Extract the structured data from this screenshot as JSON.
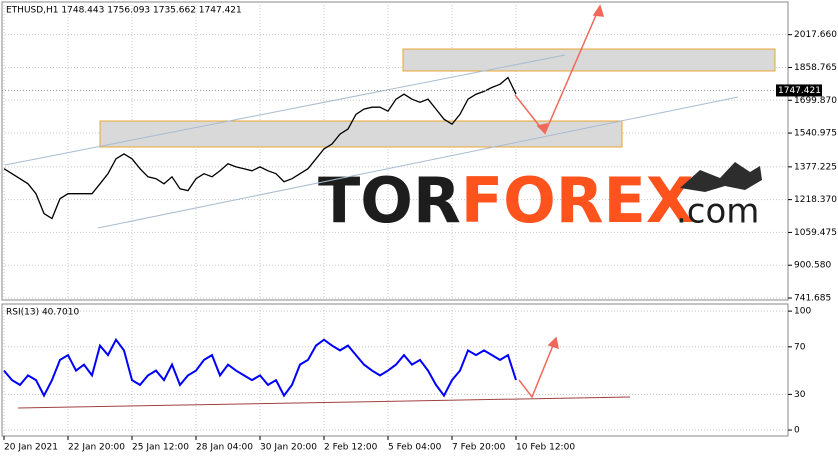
{
  "header": {
    "symbol_info": "ETHUSD,H1  1748.443 1756.093 1735.662 1747.421"
  },
  "watermark": {
    "brand_dark": "TOR",
    "brand_accent": "FOREX",
    "domain": ".com"
  },
  "chart_data": [
    {
      "type": "line",
      "color": "#000000",
      "last_price": 1747.421,
      "ylim": [
        732,
        2176
      ],
      "yticks": [
        {
          "value": 2017.66,
          "label": "2017.660"
        },
        1858.765,
        {
          "value": 1699.87,
          "label": "1699.870"
        },
        1540.975,
        1377.225,
        {
          "value": 1218.37,
          "label": "1218.370"
        },
        1059.475,
        {
          "value": 900.58,
          "label": "900.580"
        },
        741.685
      ],
      "values": [
        1368,
        1344,
        1320,
        1295,
        1247,
        1151,
        1127,
        1223,
        1247,
        1247,
        1247,
        1247,
        1295,
        1344,
        1416,
        1440,
        1416,
        1368,
        1329,
        1320,
        1295,
        1329,
        1271,
        1262,
        1320,
        1344,
        1329,
        1358,
        1392,
        1377,
        1368,
        1358,
        1377,
        1358,
        1344,
        1305,
        1320,
        1344,
        1368,
        1416,
        1464,
        1488,
        1536,
        1560,
        1632,
        1657,
        1666,
        1666,
        1647,
        1705,
        1729,
        1705,
        1690,
        1705,
        1657,
        1608,
        1584,
        1632,
        1705,
        1729,
        1743,
        1762,
        1777,
        1810,
        1729
      ]
    },
    {
      "type": "line",
      "title": "RSI(13) 40.7010",
      "color": "#0000ff",
      "ylim": [
        -5,
        106
      ],
      "yticks": [
        0,
        30,
        70,
        100
      ],
      "x": [
        "20 Jan 2021",
        null,
        null,
        null,
        null,
        null,
        null,
        null,
        "22 Jan 20:00",
        null,
        null,
        null,
        null,
        null,
        null,
        null,
        "25 Jan 12:00",
        null,
        null,
        null,
        null,
        null,
        null,
        null,
        "28 Jan 04:00",
        null,
        null,
        null,
        null,
        null,
        null,
        null,
        "30 Jan 20:00",
        null,
        null,
        null,
        null,
        null,
        null,
        null,
        "2 Feb 12:00",
        null,
        null,
        null,
        null,
        null,
        null,
        null,
        "5 Feb 04:00",
        null,
        null,
        null,
        null,
        null,
        null,
        null,
        "7 Feb 20:00",
        null,
        null,
        null,
        null,
        null,
        null,
        null,
        "10 Feb 12:00"
      ],
      "values": [
        50,
        42,
        38,
        46,
        42,
        29,
        42,
        59,
        63,
        50,
        55,
        46,
        71,
        63,
        76,
        67,
        42,
        38,
        46,
        50,
        42,
        55,
        38,
        46,
        50,
        59,
        63,
        46,
        55,
        50,
        46,
        42,
        46,
        38,
        42,
        29,
        38,
        55,
        59,
        71,
        76,
        71,
        67,
        71,
        63,
        55,
        50,
        46,
        50,
        55,
        63,
        55,
        59,
        50,
        38,
        29,
        42,
        50,
        67,
        63,
        67,
        63,
        59,
        63,
        42
      ]
    }
  ]
}
